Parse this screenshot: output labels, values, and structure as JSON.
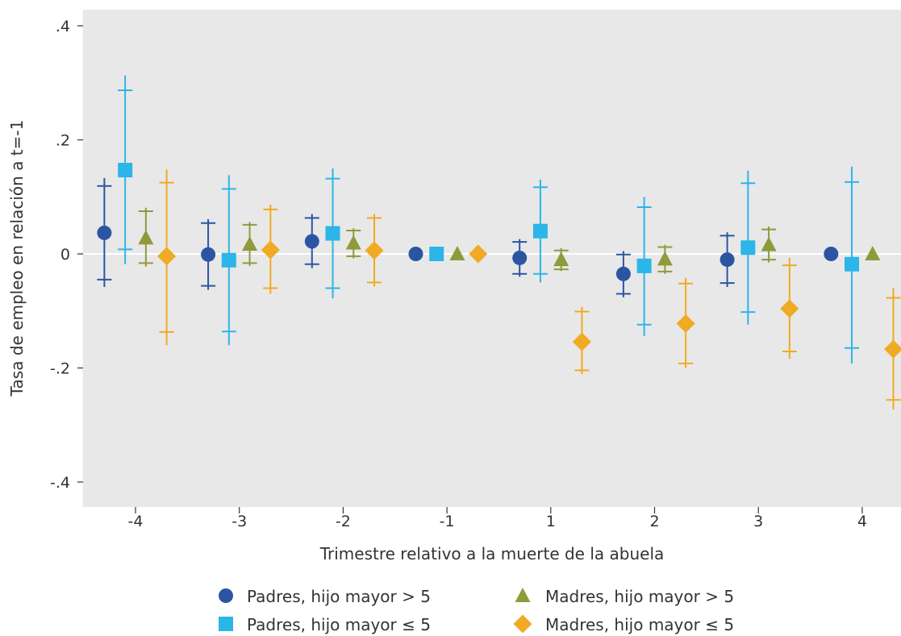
{
  "chart_data": {
    "type": "scatter",
    "title": "",
    "xlabel": "Trimestre relativo a la muerte de la abuela",
    "ylabel": "Tasa de empleo en relación a t=-1",
    "ylim": [
      -0.44,
      0.43
    ],
    "y_ticks": [
      {
        "value": 0.4,
        "label": ".4"
      },
      {
        "value": 0.2,
        "label": ".2"
      },
      {
        "value": 0,
        "label": "0"
      },
      {
        "value": -0.2,
        "label": "-.2"
      },
      {
        "value": -0.4,
        "label": "-.4"
      }
    ],
    "categories": [
      "-4",
      "-3",
      "-2",
      "-1",
      "1",
      "2",
      "3",
      "4"
    ],
    "grid": "horizontal line at zero",
    "legend_position": "bottom",
    "series": [
      {
        "name": "Padres, hijo mayor  > 5",
        "marker": "circle",
        "color": "#2b55a3",
        "offset": -0.3,
        "points": [
          {
            "x": "-4",
            "y": 0.037,
            "lo90": -0.045,
            "hi90": 0.119,
            "lo95": -0.058,
            "hi95": 0.133
          },
          {
            "x": "-3",
            "y": -0.001,
            "lo90": -0.056,
            "hi90": 0.054,
            "lo95": -0.063,
            "hi95": 0.061
          },
          {
            "x": "-2",
            "y": 0.022,
            "lo90": -0.018,
            "hi90": 0.063,
            "lo95": -0.025,
            "hi95": 0.07
          },
          {
            "x": "-1",
            "y": 0
          },
          {
            "x": "1",
            "y": -0.007,
            "lo90": -0.035,
            "hi90": 0.021,
            "lo95": -0.04,
            "hi95": 0.026
          },
          {
            "x": "2",
            "y": -0.035,
            "lo90": -0.07,
            "hi90": -0.001,
            "lo95": -0.076,
            "hi95": 0.005
          },
          {
            "x": "3",
            "y": -0.01,
            "lo90": -0.051,
            "hi90": 0.032,
            "lo95": -0.058,
            "hi95": 0.038
          },
          {
            "x": "4",
            "y": 0
          }
        ]
      },
      {
        "name": "Padres, hijo mayor  ≤ 5",
        "marker": "square",
        "color": "#2cb5e8",
        "offset": -0.1,
        "points": [
          {
            "x": "-4",
            "y": 0.147,
            "lo90": 0.008,
            "hi90": 0.287,
            "lo95": -0.018,
            "hi95": 0.313
          },
          {
            "x": "-3",
            "y": -0.011,
            "lo90": -0.136,
            "hi90": 0.114,
            "lo95": -0.16,
            "hi95": 0.138
          },
          {
            "x": "-2",
            "y": 0.036,
            "lo90": -0.06,
            "hi90": 0.132,
            "lo95": -0.078,
            "hi95": 0.15
          },
          {
            "x": "-1",
            "y": 0
          },
          {
            "x": "1",
            "y": 0.04,
            "lo90": -0.035,
            "hi90": 0.117,
            "lo95": -0.05,
            "hi95": 0.13
          },
          {
            "x": "2",
            "y": -0.021,
            "lo90": -0.124,
            "hi90": 0.082,
            "lo95": -0.144,
            "hi95": 0.1
          },
          {
            "x": "3",
            "y": 0.011,
            "lo90": -0.102,
            "hi90": 0.124,
            "lo95": -0.124,
            "hi95": 0.146
          },
          {
            "x": "4",
            "y": -0.018,
            "lo90": -0.165,
            "hi90": 0.126,
            "lo95": -0.192,
            "hi95": 0.153
          }
        ]
      },
      {
        "name": "Madres, hijo mayor  > 5",
        "marker": "triangle",
        "color": "#8f9a3b",
        "offset": 0.1,
        "points": [
          {
            "x": "-4",
            "y": 0.028,
            "lo90": -0.016,
            "hi90": 0.075,
            "lo95": -0.022,
            "hi95": 0.081
          },
          {
            "x": "-3",
            "y": 0.017,
            "lo90": -0.016,
            "hi90": 0.051,
            "lo95": -0.021,
            "hi95": 0.056
          },
          {
            "x": "-2",
            "y": 0.019,
            "lo90": -0.004,
            "hi90": 0.041,
            "lo95": -0.008,
            "hi95": 0.045
          },
          {
            "x": "-1",
            "y": 0
          },
          {
            "x": "1",
            "y": -0.01,
            "lo90": -0.027,
            "hi90": 0.006,
            "lo95": -0.03,
            "hi95": 0.01
          },
          {
            "x": "2",
            "y": -0.009,
            "lo90": -0.031,
            "hi90": 0.012,
            "lo95": -0.035,
            "hi95": 0.016
          },
          {
            "x": "3",
            "y": 0.016,
            "lo90": -0.01,
            "hi90": 0.043,
            "lo95": -0.015,
            "hi95": 0.048
          },
          {
            "x": "4",
            "y": 0
          }
        ]
      },
      {
        "name": "Madres, hijo mayor ≤ 5",
        "marker": "diamond",
        "color": "#f0aa23",
        "offset": 0.3,
        "points": [
          {
            "x": "-4",
            "y": -0.004,
            "lo90": -0.137,
            "hi90": 0.125,
            "lo95": -0.16,
            "hi95": 0.148
          },
          {
            "x": "-3",
            "y": 0.007,
            "lo90": -0.06,
            "hi90": 0.078,
            "lo95": -0.07,
            "hi95": 0.086
          },
          {
            "x": "-2",
            "y": 0.006,
            "lo90": -0.05,
            "hi90": 0.063,
            "lo95": -0.057,
            "hi95": 0.07
          },
          {
            "x": "-1",
            "y": 0
          },
          {
            "x": "1",
            "y": -0.154,
            "lo90": -0.204,
            "hi90": -0.101,
            "lo95": -0.211,
            "hi95": -0.093
          },
          {
            "x": "2",
            "y": -0.122,
            "lo90": -0.192,
            "hi90": -0.052,
            "lo95": -0.2,
            "hi95": -0.042
          },
          {
            "x": "3",
            "y": -0.096,
            "lo90": -0.171,
            "hi90": -0.02,
            "lo95": -0.184,
            "hi95": -0.007
          },
          {
            "x": "4",
            "y": -0.167,
            "lo90": -0.256,
            "hi90": -0.077,
            "lo95": -0.273,
            "hi95": -0.06
          }
        ]
      }
    ]
  }
}
